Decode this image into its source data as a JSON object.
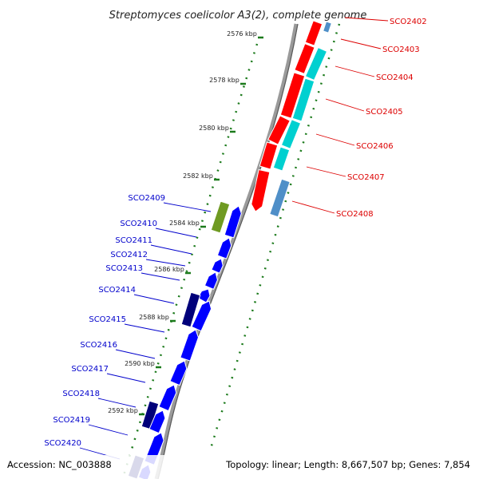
{
  "title": "Streptomyces coelicolor A3(2), complete genome",
  "footer": {
    "accession": "Accession: NC_003888",
    "summary": "Topology: linear; Length: 8,667,507 bp; Genes: 7,854"
  },
  "colors": {
    "forward_gene": "#ff0000",
    "forward_cds": "#00d0d0",
    "forward_other": "#4f8fc8",
    "reverse_gene": "#0000ff",
    "reverse_cds": "#00007a",
    "reverse_other": "#6f9a22",
    "forward_label": "#dd0000",
    "reverse_label": "#0000cc",
    "tick": "#1b7a1b"
  },
  "ticks": [
    {
      "label": "2576 kbp"
    },
    {
      "label": "2578 kbp"
    },
    {
      "label": "2580 kbp"
    },
    {
      "label": "2582 kbp"
    },
    {
      "label": "2584 kbp"
    },
    {
      "label": "2586 kbp"
    },
    {
      "label": "2588 kbp"
    },
    {
      "label": "2590 kbp"
    },
    {
      "label": "2592 kbp"
    }
  ],
  "forward_labels": [
    "SCO2402",
    "SCO2403",
    "SCO2404",
    "SCO2405",
    "SCO2406",
    "SCO2407",
    "SCO2408"
  ],
  "reverse_labels": [
    "SCO2409",
    "SCO2410",
    "SCO2411",
    "SCO2412",
    "SCO2413",
    "SCO2414",
    "SCO2415",
    "SCO2416",
    "SCO2417",
    "SCO2418",
    "SCO2419",
    "SCO2420"
  ]
}
